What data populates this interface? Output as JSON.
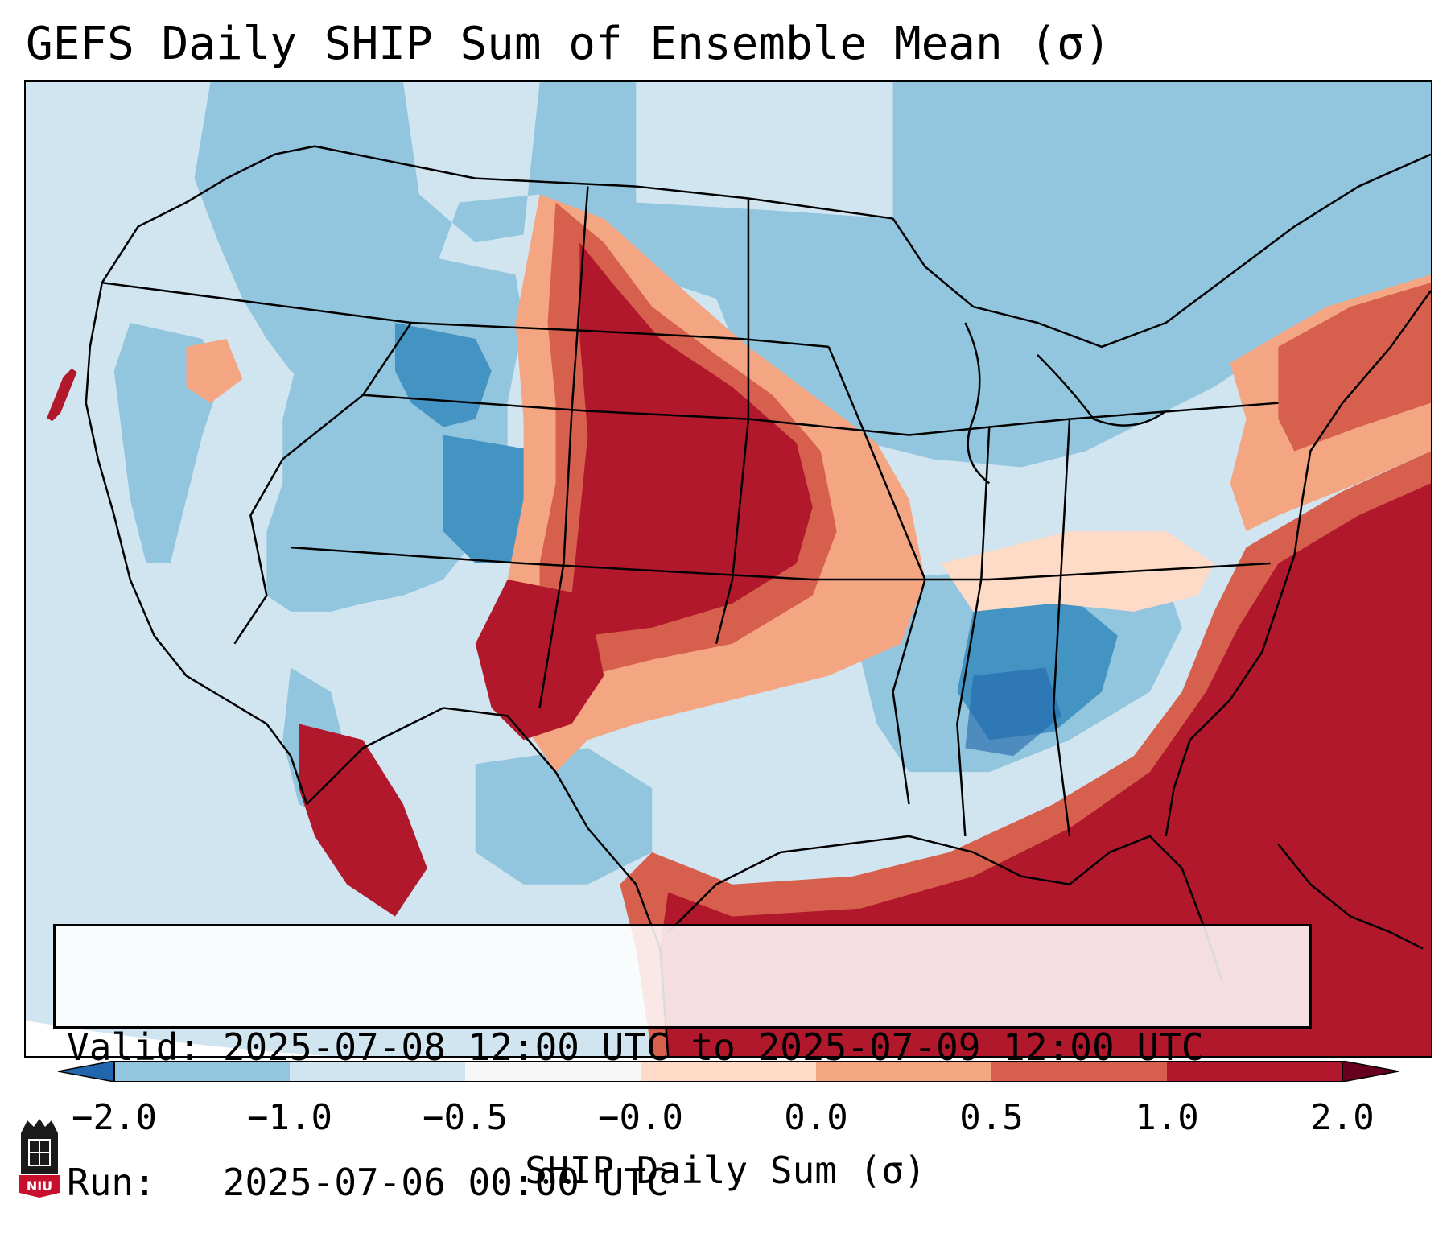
{
  "header": {
    "title": "GEFS Daily SHIP Sum of Ensemble Mean (σ)"
  },
  "info_box": {
    "valid_line": "Valid: 2025-07-08 12:00 UTC to 2025-07-09 12:00 UTC",
    "run_line": "Run:   2025-07-06 00:00 UTC"
  },
  "colorbar": {
    "label": "SHIP Daily Sum (σ)",
    "ticks": [
      "−2.0",
      "−1.0",
      "−0.5",
      "−0.0",
      "0.0",
      "0.5",
      "1.0",
      "2.0"
    ],
    "colors": [
      "#4393c3",
      "#92c5de",
      "#d1e5f0",
      "#f7f7f7",
      "#fddbc7",
      "#f4a582",
      "#d6604d",
      "#b2182b"
    ],
    "under_color": "#2166ac",
    "over_color": "#67001f"
  },
  "map": {
    "region": "Contiguous United States",
    "palette": {
      "strong_negative": "#4393c3",
      "moderate_negative": "#92c5de",
      "weak_negative": "#d1e5f0",
      "weak_positive": "#fddbc7",
      "moderate_positive": "#f4a582",
      "strong_positive": "#d6604d",
      "very_strong_positive": "#b2182b"
    }
  },
  "logo": {
    "text": "NIU"
  }
}
